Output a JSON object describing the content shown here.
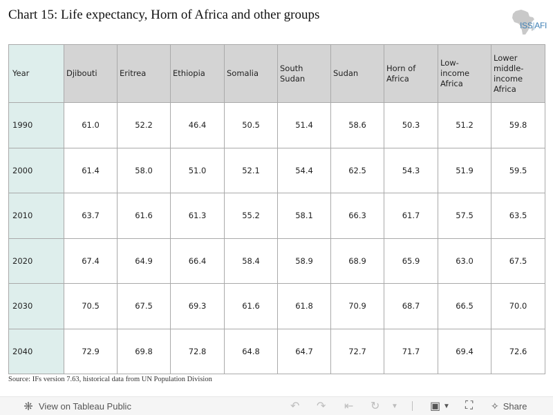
{
  "title": "Chart 15: Life expectancy, Horn of Africa and other groups",
  "logo": {
    "brand": "ISS",
    "brand_suffix": "AFI",
    "icon": "africa-map-icon"
  },
  "chart_data": {
    "type": "table",
    "title": "Chart 15: Life expectancy, Horn of Africa and other groups",
    "columns": [
      "Year",
      "Djibouti",
      "Eritrea",
      "Ethiopia",
      "Somalia",
      "South Sudan",
      "Sudan",
      "Horn of Africa",
      "Low- income Africa",
      "Lower middle-income Africa"
    ],
    "rows": [
      [
        "1990",
        "61.0",
        "52.2",
        "46.4",
        "50.5",
        "51.4",
        "58.6",
        "50.3",
        "51.2",
        "59.8"
      ],
      [
        "2000",
        "61.4",
        "58.0",
        "51.0",
        "52.1",
        "54.4",
        "62.5",
        "54.3",
        "51.9",
        "59.5"
      ],
      [
        "2010",
        "63.7",
        "61.6",
        "61.3",
        "55.2",
        "58.1",
        "66.3",
        "61.7",
        "57.5",
        "63.5"
      ],
      [
        "2020",
        "67.4",
        "64.9",
        "66.4",
        "58.4",
        "58.9",
        "68.9",
        "65.9",
        "63.0",
        "67.5"
      ],
      [
        "2030",
        "70.5",
        "67.5",
        "69.3",
        "61.6",
        "61.8",
        "70.9",
        "68.7",
        "66.5",
        "70.0"
      ],
      [
        "2040",
        "72.9",
        "69.8",
        "72.8",
        "64.8",
        "64.7",
        "72.7",
        "71.7",
        "69.4",
        "72.6"
      ]
    ]
  },
  "source": "Source: IFs version 7.63, historical data from UN Population Division",
  "toolbar": {
    "view_label": "View on Tableau Public",
    "share_label": "Share",
    "colors": {
      "background": "#f5f5f5",
      "disabled_icon": "#bdbdbd",
      "active_icon": "#555555"
    }
  },
  "colors": {
    "header_bg": "#d4d4d4",
    "year_col_bg": "#deeeec",
    "grid": "#a9a9a9",
    "logo": "#3d7fb4"
  }
}
